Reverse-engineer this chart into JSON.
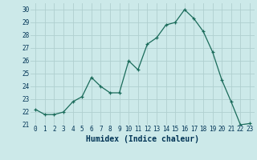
{
  "x": [
    0,
    1,
    2,
    3,
    4,
    5,
    6,
    7,
    8,
    9,
    10,
    11,
    12,
    13,
    14,
    15,
    16,
    17,
    18,
    19,
    20,
    21,
    22,
    23
  ],
  "y": [
    22.2,
    21.8,
    21.8,
    22.0,
    22.8,
    23.2,
    24.7,
    24.0,
    23.5,
    23.5,
    26.0,
    25.3,
    27.3,
    27.8,
    28.8,
    29.0,
    30.0,
    29.3,
    28.3,
    26.7,
    24.5,
    22.8,
    21.0,
    21.1
  ],
  "xlabel": "Humidex (Indice chaleur)",
  "ylim": [
    21,
    30.5
  ],
  "xlim": [
    -0.5,
    23.5
  ],
  "bg_color": "#cce9e9",
  "grid_color": "#b0cfcf",
  "line_color": "#1a6b5a",
  "marker_color": "#1a6b5a",
  "yticks": [
    21,
    22,
    23,
    24,
    25,
    26,
    27,
    28,
    29,
    30
  ],
  "xticks": [
    0,
    1,
    2,
    3,
    4,
    5,
    6,
    7,
    8,
    9,
    10,
    11,
    12,
    13,
    14,
    15,
    16,
    17,
    18,
    19,
    20,
    21,
    22,
    23
  ],
  "xlabel_color": "#003355",
  "tick_fontsize": 5.5,
  "xlabel_fontsize": 7
}
